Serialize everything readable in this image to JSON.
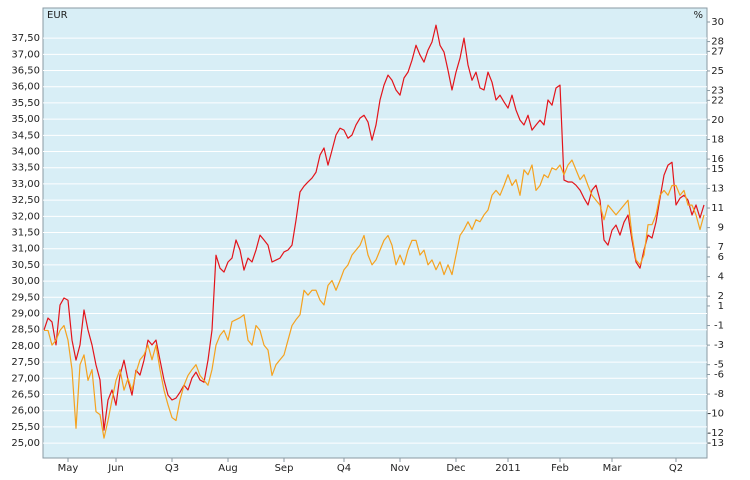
{
  "chart_data": {
    "type": "line",
    "y_unit": "EUR",
    "y2_unit": "%",
    "xlim": [
      -0.25,
      165.75
    ],
    "xticks": [
      {
        "value": 6,
        "label": "May"
      },
      {
        "value": 18,
        "label": "Jun"
      },
      {
        "value": 32,
        "label": "Q3"
      },
      {
        "value": 46,
        "label": "Aug"
      },
      {
        "value": 60,
        "label": "Sep"
      },
      {
        "value": 75,
        "label": "Q4"
      },
      {
        "value": 89,
        "label": "Nov"
      },
      {
        "value": 103,
        "label": "Dec"
      },
      {
        "value": 116,
        "label": "2011"
      },
      {
        "value": 129,
        "label": "Feb"
      },
      {
        "value": 142,
        "label": "Mar"
      },
      {
        "value": 158,
        "label": "Q2"
      }
    ],
    "ylim": [
      24.54,
      38.43
    ],
    "yticks": [
      {
        "value": 25,
        "label": "25,00"
      },
      {
        "value": 25.5,
        "label": "25,50"
      },
      {
        "value": 26,
        "label": "26,00"
      },
      {
        "value": 26.5,
        "label": "26,50"
      },
      {
        "value": 27,
        "label": "27,00"
      },
      {
        "value": 27.5,
        "label": "27,50"
      },
      {
        "value": 28,
        "label": "28,00"
      },
      {
        "value": 28.5,
        "label": "28,50"
      },
      {
        "value": 29,
        "label": "29,00"
      },
      {
        "value": 29.5,
        "label": "29,50"
      },
      {
        "value": 30,
        "label": "30,00"
      },
      {
        "value": 30.5,
        "label": "30,50"
      },
      {
        "value": 31,
        "label": "31,00"
      },
      {
        "value": 31.5,
        "label": "31,50"
      },
      {
        "value": 32,
        "label": "32,00"
      },
      {
        "value": 32.5,
        "label": "32,50"
      },
      {
        "value": 33,
        "label": "33,00"
      },
      {
        "value": 33.5,
        "label": "33,50"
      },
      {
        "value": 34,
        "label": "34,00"
      },
      {
        "value": 34.5,
        "label": "34,50"
      },
      {
        "value": 35,
        "label": "35,00"
      },
      {
        "value": 35.5,
        "label": "35,50"
      },
      {
        "value": 36,
        "label": "36,00"
      },
      {
        "value": 36.5,
        "label": "36,50"
      },
      {
        "value": 37,
        "label": "37,00"
      },
      {
        "value": 37.5,
        "label": "37,50"
      }
    ],
    "y2lim": [
      -14.53,
      31.43
    ],
    "y2ticks": [
      -13,
      -12,
      -10,
      -8,
      -6,
      -5,
      -3,
      -1,
      1,
      2,
      4,
      6,
      7,
      9,
      11,
      13,
      15,
      16,
      18,
      20,
      22,
      23,
      25,
      27,
      28,
      30
    ],
    "grid": true,
    "series": [
      {
        "color": "#e3141b",
        "values": [
          28.49,
          28.86,
          28.74,
          28.03,
          29.26,
          29.48,
          29.41,
          28.18,
          27.56,
          28.03,
          29.11,
          28.49,
          28.03,
          27.41,
          26.95,
          25.4,
          26.33,
          26.64,
          26.17,
          27.1,
          27.56,
          26.95,
          26.48,
          27.25,
          27.1,
          27.56,
          28.18,
          28.03,
          28.18,
          27.56,
          26.95,
          26.48,
          26.33,
          26.39,
          26.57,
          26.79,
          26.64,
          27.01,
          27.19,
          26.95,
          26.88,
          27.56,
          28.49,
          30.8,
          30.4,
          30.28,
          30.59,
          30.71,
          31.27,
          30.96,
          30.34,
          30.71,
          30.59,
          30.96,
          31.42,
          31.27,
          31.11,
          30.59,
          30.65,
          30.71,
          30.9,
          30.96,
          31.11,
          31.88,
          32.75,
          32.93,
          33.06,
          33.18,
          33.36,
          33.89,
          34.11,
          33.58,
          34.04,
          34.51,
          34.72,
          34.66,
          34.41,
          34.51,
          34.82,
          35.03,
          35.12,
          34.91,
          34.35,
          34.82,
          35.59,
          36.05,
          36.36,
          36.2,
          35.9,
          35.74,
          36.27,
          36.45,
          36.82,
          37.28,
          36.98,
          36.76,
          37.13,
          37.38,
          37.9,
          37.28,
          37.07,
          36.51,
          35.9,
          36.45,
          36.88,
          37.5,
          36.67,
          36.2,
          36.45,
          35.96,
          35.9,
          36.45,
          36.14,
          35.59,
          35.74,
          35.53,
          35.34,
          35.74,
          35.28,
          34.97,
          34.82,
          35.12,
          34.66,
          34.82,
          34.97,
          34.82,
          35.59,
          35.43,
          35.96,
          36.05,
          33.12,
          33.06,
          33.06,
          32.96,
          32.81,
          32.56,
          32.35,
          32.81,
          32.96,
          32.5,
          31.27,
          31.11,
          31.57,
          31.73,
          31.42,
          31.82,
          32.04,
          31.27,
          30.59,
          30.4,
          30.96,
          31.42,
          31.33,
          31.82,
          32.56,
          33.27,
          33.58,
          33.67,
          32.35,
          32.56,
          32.65,
          32.5,
          32.04,
          32.35,
          31.95,
          32.35
        ]
      },
      {
        "color": "#f5a21f",
        "axis": "y2",
        "values": [
          -1.5,
          -1.5,
          -3.0,
          -2.5,
          -1.5,
          -1.0,
          -2.5,
          -5.5,
          -11.5,
          -5.0,
          -4.0,
          -6.6,
          -5.5,
          -9.8,
          -10.1,
          -12.5,
          -10.7,
          -8.6,
          -6.6,
          -5.5,
          -7.6,
          -6.4,
          -7.6,
          -5.8,
          -4.5,
          -4.0,
          -3.0,
          -4.5,
          -3.0,
          -5.5,
          -7.6,
          -9.1,
          -10.4,
          -10.7,
          -8.6,
          -7.1,
          -6.1,
          -5.5,
          -5.0,
          -6.1,
          -6.6,
          -7.1,
          -5.5,
          -3.0,
          -2.0,
          -1.5,
          -2.5,
          -0.6,
          -0.4,
          -0.2,
          0.1,
          -2.5,
          -3.0,
          -1.0,
          -1.5,
          -3.0,
          -3.5,
          -6.1,
          -5.0,
          -4.5,
          -4.0,
          -2.5,
          -1.0,
          -0.4,
          0.1,
          2.6,
          2.1,
          2.6,
          2.6,
          1.6,
          1.1,
          3.1,
          3.6,
          2.6,
          3.6,
          4.7,
          5.2,
          6.2,
          6.7,
          7.2,
          8.2,
          6.2,
          5.2,
          5.7,
          6.7,
          7.7,
          8.2,
          7.2,
          5.2,
          6.2,
          5.2,
          6.7,
          7.7,
          7.7,
          6.2,
          6.7,
          5.2,
          5.7,
          4.7,
          5.5,
          4.2,
          5.2,
          4.2,
          6.2,
          8.2,
          8.8,
          9.6,
          8.8,
          9.8,
          9.6,
          10.3,
          10.8,
          12.3,
          12.8,
          12.3,
          13.3,
          14.4,
          13.3,
          13.9,
          12.3,
          14.9,
          14.4,
          15.4,
          12.8,
          13.3,
          14.4,
          14.1,
          15.1,
          14.9,
          15.4,
          14.4,
          15.4,
          15.9,
          14.9,
          13.9,
          14.4,
          13.3,
          12.3,
          11.8,
          11.3,
          9.8,
          11.3,
          10.8,
          10.3,
          10.8,
          11.3,
          11.8,
          8.2,
          5.7,
          5.2,
          6.2,
          9.3,
          9.3,
          10.3,
          12.3,
          12.8,
          12.3,
          13.3,
          13.3,
          12.3,
          12.8,
          11.3,
          11.3,
          10.3,
          8.8,
          10.3
        ]
      }
    ]
  }
}
